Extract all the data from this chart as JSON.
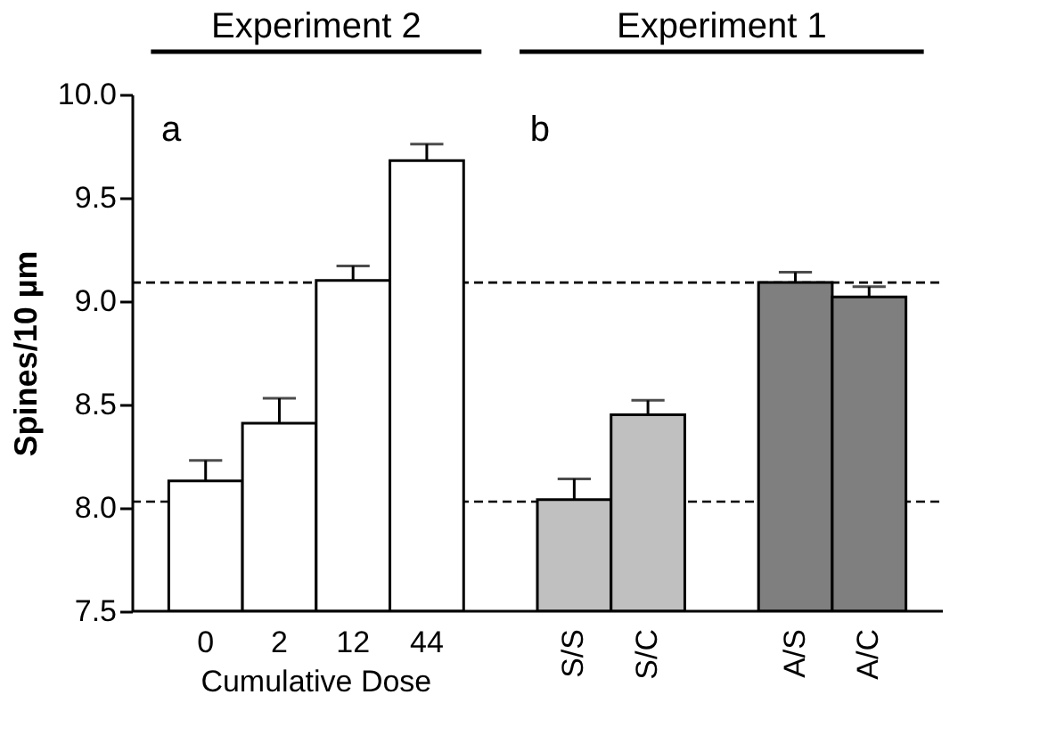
{
  "chart_data": {
    "type": "bar",
    "categories": [
      "0",
      "2",
      "12",
      "44",
      null,
      "S/S",
      "S/C",
      null,
      "A/S",
      "A/C"
    ],
    "values": [
      8.13,
      8.41,
      9.1,
      9.68,
      null,
      8.04,
      8.45,
      null,
      9.09,
      9.02
    ],
    "errors": [
      0.1,
      0.12,
      0.07,
      0.08,
      null,
      0.1,
      0.07,
      null,
      0.05,
      0.05
    ],
    "colors": [
      "#ffffff",
      "#ffffff",
      "#ffffff",
      "#ffffff",
      null,
      "#c0c0c0",
      "#c0c0c0",
      null,
      "#7f7f7f",
      "#7f7f7f"
    ],
    "ylabel": "Spines/10 µm",
    "xlabel": "Cumulative Dose",
    "ylim": [
      7.5,
      10.0
    ],
    "yticks": [
      {
        "value": 7.5,
        "label": "7.5"
      },
      {
        "value": 8.0,
        "label": "8.0"
      },
      {
        "value": 8.5,
        "label": "8.5"
      },
      {
        "value": 9.0,
        "label": "9.0"
      },
      {
        "value": 9.5,
        "label": "9.5"
      },
      {
        "value": 10.0,
        "label": "10.0"
      }
    ],
    "ref_lines": [
      {
        "axis": "y",
        "value": 8.03,
        "line_style": "dashed"
      },
      {
        "axis": "y",
        "value": 9.09,
        "line_style": "dashed"
      }
    ],
    "annotations": [
      "Experiment 2",
      "Experiment 1",
      "a",
      "b"
    ],
    "grid": false
  }
}
